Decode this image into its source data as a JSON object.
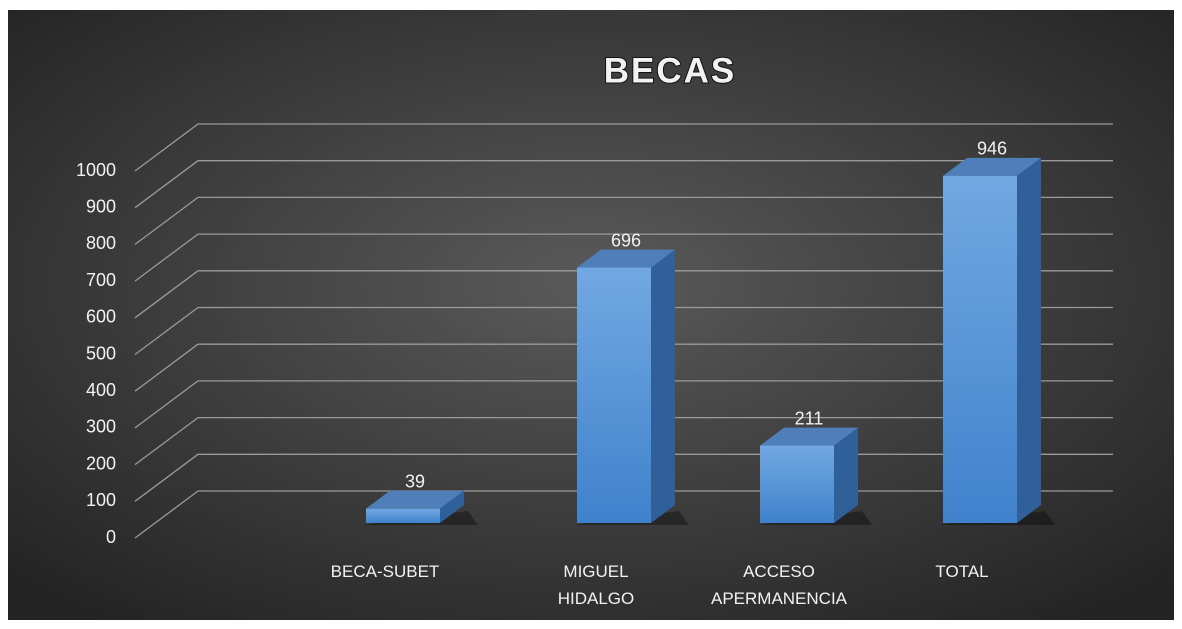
{
  "chart_data": {
    "type": "bar3d",
    "title": "BECAS",
    "categories": [
      "BECA-SUBET",
      "MIGUEL HIDALGO",
      "ACCESO APERMANENCIA",
      "TOTAL"
    ],
    "values": [
      39,
      696,
      211,
      946
    ],
    "color": "#5b9bd5",
    "ylim": [
      0,
      1000
    ],
    "yticks": [
      0,
      100,
      200,
      300,
      400,
      500,
      600,
      700,
      800,
      900,
      1000
    ],
    "grid": true
  }
}
